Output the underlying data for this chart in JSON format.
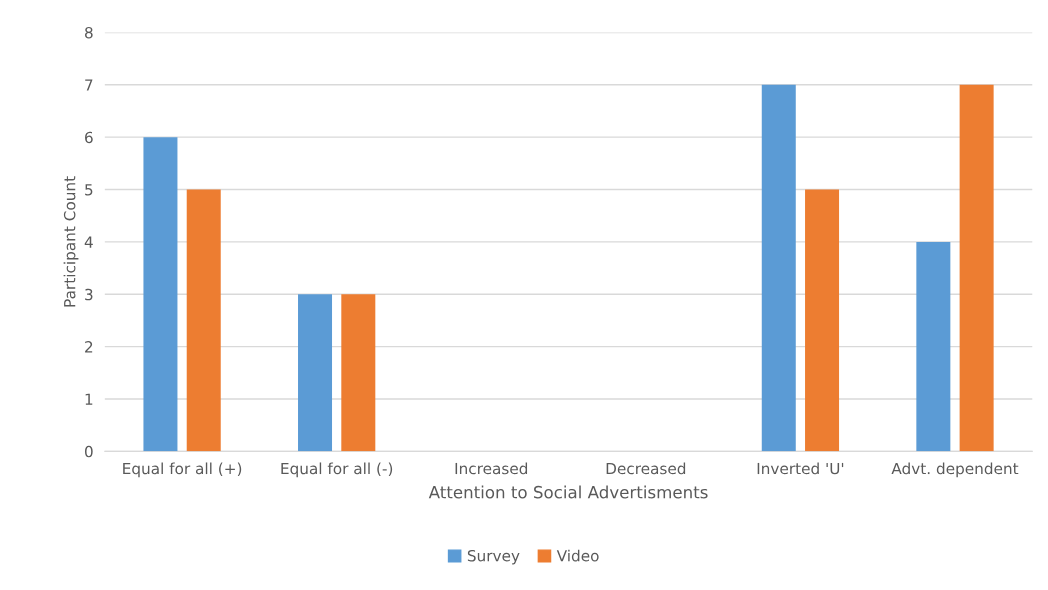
{
  "chart_data": {
    "type": "bar",
    "xlabel": "Attention to Social Advertisments",
    "ylabel": "Participant Count",
    "categories": [
      "Equal for all (+)",
      "Equal for all (-)",
      "Increased",
      "Decreased",
      "Inverted 'U'",
      "Advt. dependent"
    ],
    "series": [
      {
        "name": "Survey",
        "color": "#5b9bd5",
        "values": [
          6,
          3,
          0,
          0,
          7,
          4
        ]
      },
      {
        "name": "Video",
        "color": "#ed7d31",
        "values": [
          5,
          3,
          0,
          0,
          5,
          7
        ]
      }
    ],
    "ylim": [
      0,
      8
    ],
    "yticks": [
      0,
      1,
      2,
      3,
      4,
      5,
      6,
      7,
      8
    ],
    "grid": "y",
    "legend": "bottom"
  }
}
